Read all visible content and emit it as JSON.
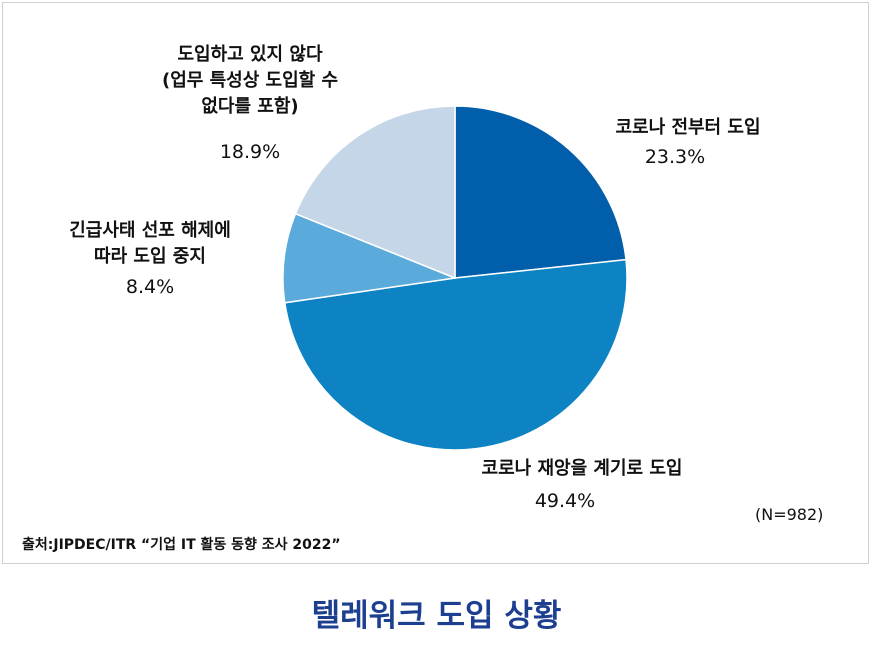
{
  "chart_data": {
    "type": "pie",
    "categories": [
      "코로나 전부터 도입",
      "코로나 재앙을 계기로 도입",
      "긴급사태 선포 해제에\n따라 도입 중지",
      "도입하고 있지 않다\n(업무 특성상 도입할 수\n없다를 포함)"
    ],
    "values": [
      23.3,
      49.4,
      8.4,
      18.9
    ],
    "value_labels": [
      "23.3%",
      "49.4%",
      "8.4%",
      "18.9%"
    ],
    "colors": [
      "#005eab",
      "#0e83c4",
      "#5aaadb",
      "#c5d6e8"
    ],
    "note": "(N=982)",
    "source": "출처:JIPDEC/ITR “기업 IT 활동 동향 조사 2022”",
    "caption": "텔레워크 도입 상황"
  }
}
